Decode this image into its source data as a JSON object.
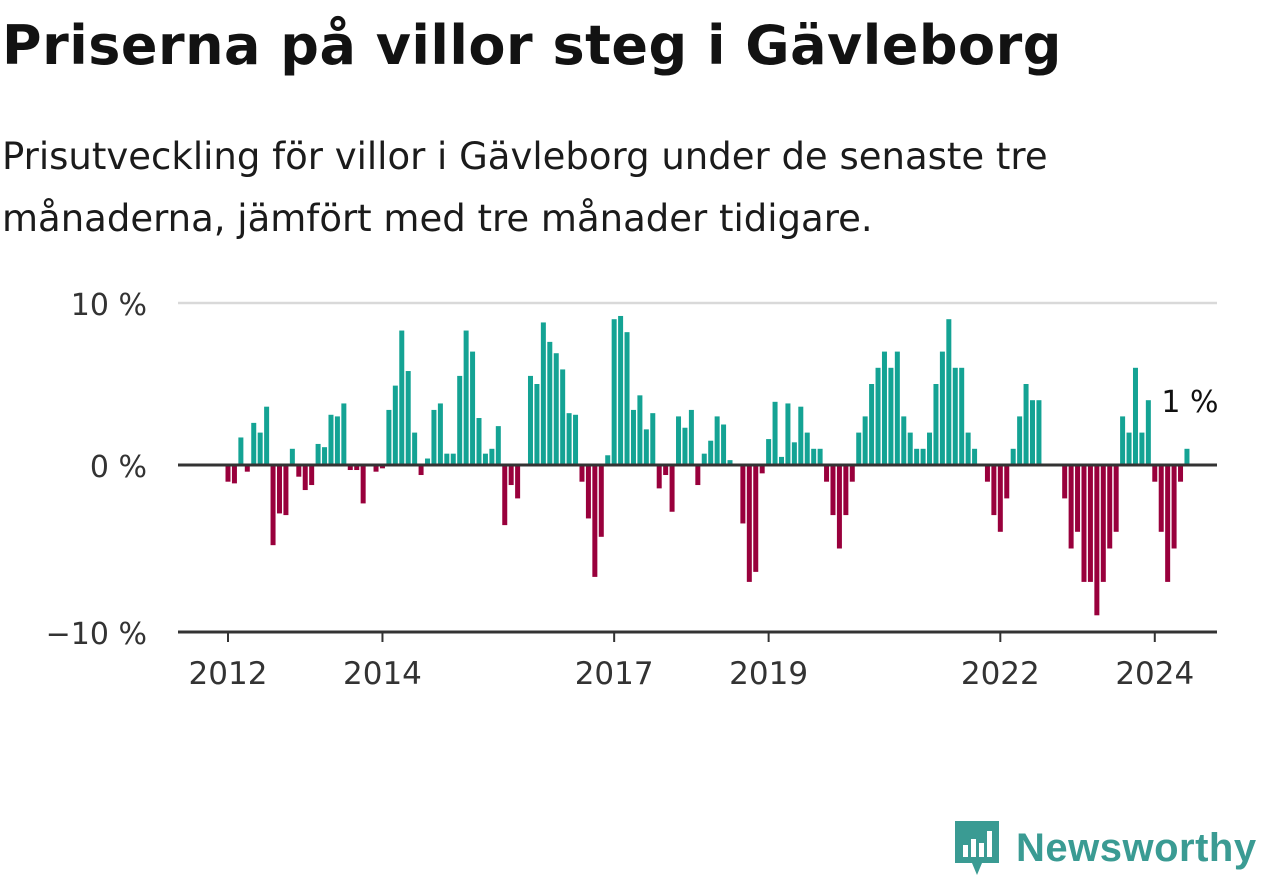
{
  "title": "Priserna på villor steg i Gävleborg",
  "subtitle": "Prisutveckling för villor i Gävleborg under de senaste tre månaderna, jämfört med tre månader tidigare.",
  "brand": {
    "name": "Newsworthy",
    "color": "#3a9b93",
    "icon": "bar-chart-bubble-icon"
  },
  "colors": {
    "positive": "#14a394",
    "negative": "#99003c",
    "grid": "#d9d9d9",
    "axis": "#333333"
  },
  "chart_data": {
    "type": "bar",
    "unit": "%",
    "ylim": [
      -10,
      10
    ],
    "y_ticks": [
      10,
      0,
      -10
    ],
    "y_tick_labels": [
      "10 %",
      "0 %",
      "−10 %"
    ],
    "x_tick_labels": [
      {
        "label": "2012",
        "index": 0
      },
      {
        "label": "2014",
        "index": 24
      },
      {
        "label": "2017",
        "index": 60
      },
      {
        "label": "2019",
        "index": 84
      },
      {
        "label": "2022",
        "index": 120
      },
      {
        "label": "2024",
        "index": 144
      }
    ],
    "last_value_label": "1 %",
    "values": [
      -1.0,
      -1.1,
      1.7,
      -0.4,
      2.6,
      2.0,
      3.6,
      -4.8,
      -2.9,
      -3.0,
      1.0,
      -0.7,
      -1.5,
      -1.2,
      1.3,
      1.1,
      3.1,
      3.0,
      3.8,
      -0.3,
      -0.3,
      -2.3,
      0.0,
      -0.4,
      -0.2,
      3.4,
      4.9,
      8.3,
      5.8,
      2.0,
      -0.6,
      0.4,
      3.4,
      3.8,
      0.7,
      0.7,
      5.5,
      8.3,
      7.0,
      2.9,
      0.7,
      1.0,
      2.4,
      -3.6,
      -1.2,
      -2.0,
      0.0,
      5.5,
      5.0,
      8.8,
      7.6,
      6.9,
      5.9,
      3.2,
      3.1,
      -1.0,
      -3.2,
      -6.7,
      -4.3,
      0.6,
      9.0,
      9.2,
      8.2,
      3.4,
      4.3,
      2.2,
      3.2,
      -1.4,
      -0.6,
      -2.8,
      3.0,
      2.3,
      3.4,
      -1.2,
      0.7,
      1.5,
      3.0,
      2.5,
      0.3,
      0.0,
      -3.5,
      -7.0,
      -6.4,
      -0.5,
      1.6,
      3.9,
      0.5,
      3.8,
      1.4,
      3.6,
      2.0,
      1.0,
      1.0,
      -1.0,
      -3.0,
      -5.0,
      -3.0,
      -1.0,
      2.0,
      3.0,
      5.0,
      6.0,
      7.0,
      6.0,
      7.0,
      3.0,
      2.0,
      1.0,
      1.0,
      2.0,
      5.0,
      7.0,
      9.0,
      6.0,
      6.0,
      2.0,
      1.0,
      0.0,
      -1.0,
      -3.0,
      -4.0,
      -2.0,
      1.0,
      3.0,
      5.0,
      4.0,
      4.0,
      0.0,
      0.0,
      0.0,
      -2.0,
      -5.0,
      -4.0,
      -7.0,
      -7.0,
      -9.0,
      -7.0,
      -5.0,
      -4.0,
      3.0,
      2.0,
      6.0,
      2.0,
      4.0,
      -1.0,
      -4.0,
      -7.0,
      -5.0,
      -1.0,
      1.0
    ]
  }
}
